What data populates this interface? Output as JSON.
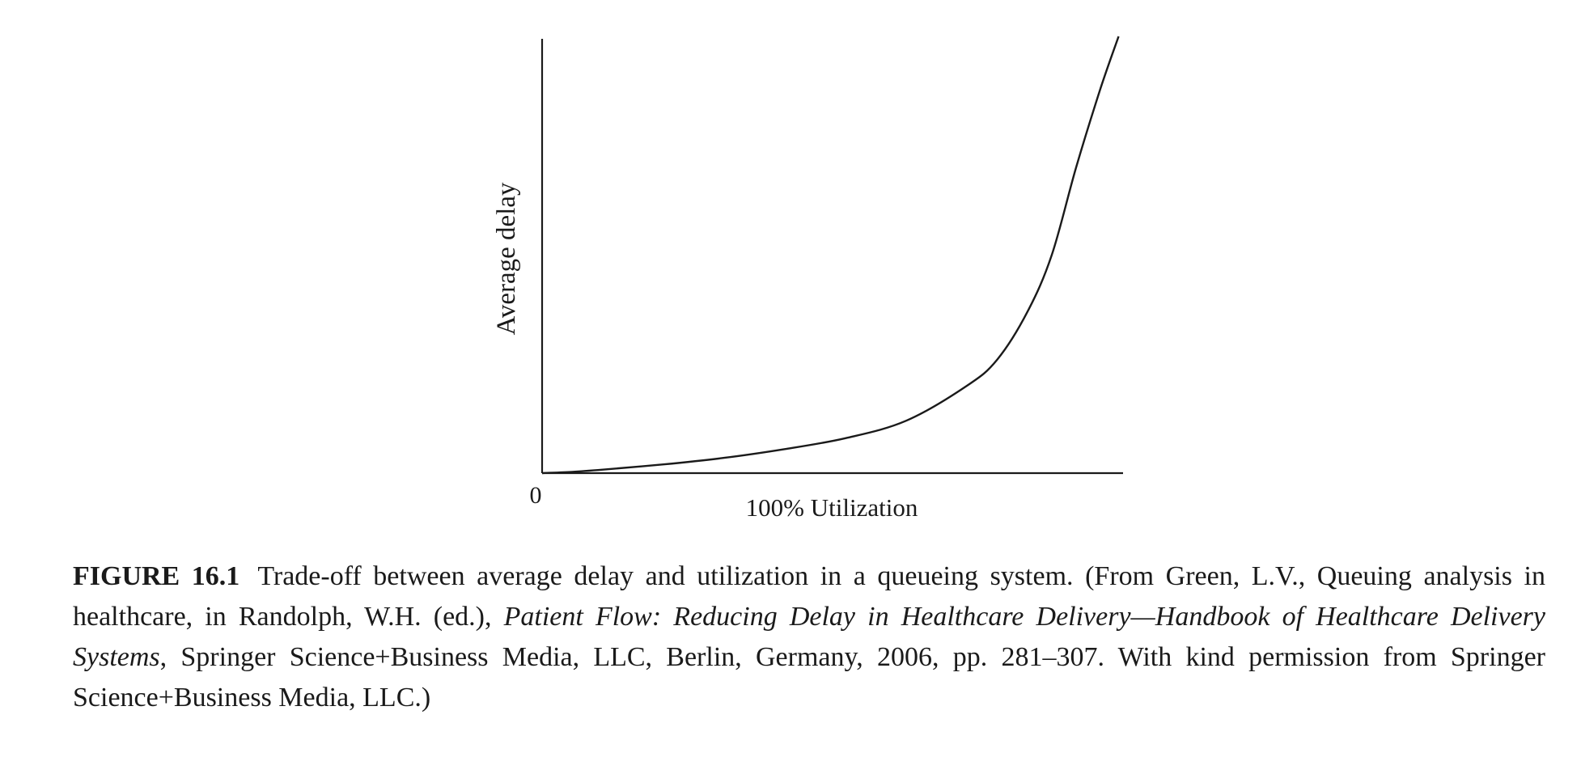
{
  "chart_data": {
    "type": "line",
    "xlabel": "100% Utilization",
    "ylabel": "Average delay",
    "x_origin_label": "0",
    "grid": false,
    "legend": "none",
    "xlim": [
      0,
      1
    ],
    "ylim": [
      0,
      1
    ],
    "series": [
      {
        "x": [
          0,
          0.05,
          0.1,
          0.2,
          0.3,
          0.4,
          0.5,
          0.6,
          0.7,
          0.75,
          0.8,
          0.84,
          0.88,
          0.92,
          0.95
        ],
        "values": [
          0,
          0.003,
          0.008,
          0.02,
          0.035,
          0.055,
          0.08,
          0.12,
          0.2,
          0.26,
          0.37,
          0.5,
          0.7,
          0.88,
          1.0
        ]
      }
    ]
  },
  "caption": {
    "label": "FIGURE 16.1",
    "text_before_italic": "Trade-off between average delay and utilization in a queueing system. (From Green, L.V., Queuing analysis in healthcare, in Randolph, W.H. (ed.), ",
    "italic": "Patient Flow: Reducing Delay in Healthcare Delivery—Handbook of Healthcare Delivery Systems",
    "text_after_italic": ", Springer Science+Business Media, LLC, Berlin, Germany, 2006, pp. 281–307. With kind permission from Springer Science+Business Media, LLC.)"
  },
  "colors": {
    "ink": "#1a1a1a",
    "background": "#ffffff"
  }
}
